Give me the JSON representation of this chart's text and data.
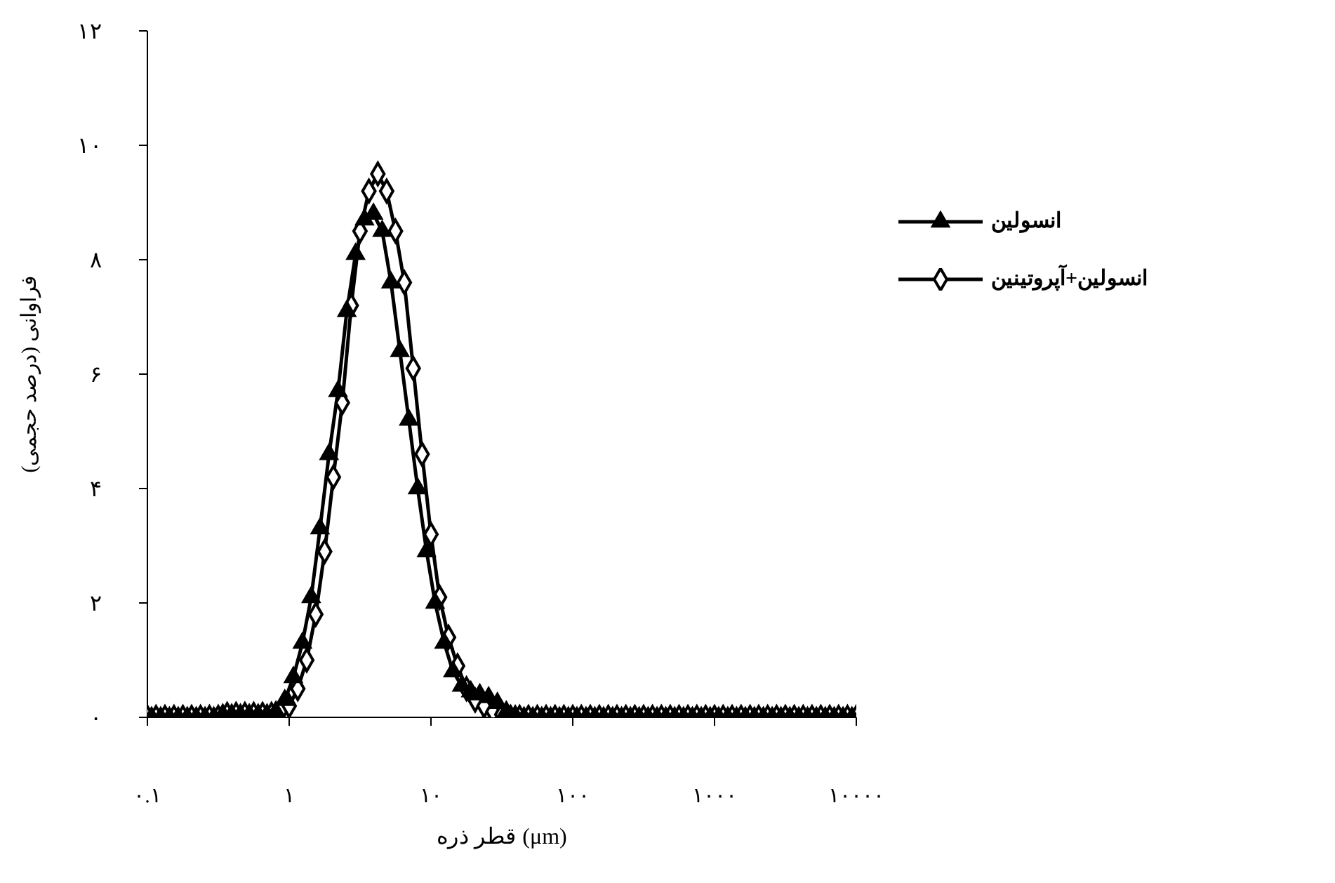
{
  "chart_data": {
    "type": "line",
    "xlabel": "قطر ذره (μm)",
    "ylabel": "فراوانی (درصد حجمی)",
    "log": "x",
    "grid": false,
    "legend": "top right",
    "x": [
      0.1,
      0.115,
      0.133,
      0.154,
      0.178,
      0.205,
      0.237,
      0.274,
      0.316,
      0.365,
      0.422,
      0.487,
      0.562,
      0.649,
      0.75,
      0.866,
      1,
      1.15,
      1.33,
      1.54,
      1.78,
      2.05,
      2.37,
      2.74,
      3.16,
      3.65,
      4.22,
      4.87,
      5.62,
      6.49,
      7.5,
      8.66,
      10,
      11.5,
      13.3,
      15.4,
      17.8,
      20.5,
      23.7,
      27.4,
      31.6,
      36.5,
      42.2,
      48.7,
      56.2,
      64.9,
      75,
      86.6,
      100,
      115,
      133,
      154,
      178,
      205,
      237,
      274,
      316,
      365,
      422,
      487,
      562,
      649,
      750,
      866,
      1000,
      1150,
      1330,
      1540,
      1780,
      2050,
      2370,
      2740,
      3160,
      3650,
      4220,
      4870,
      5620,
      6490,
      7500,
      8660,
      10000
    ],
    "xlim": [
      0.1,
      10000
    ],
    "xticks": [
      {
        "value": 0.1,
        "label": "۰.۱"
      },
      {
        "value": 1,
        "label": "۱"
      },
      {
        "value": 10,
        "label": "۱۰"
      },
      {
        "value": 100,
        "label": "۱۰۰"
      },
      {
        "value": 1000,
        "label": "۱۰۰۰"
      },
      {
        "value": 10000,
        "label": "۱۰۰۰۰"
      }
    ],
    "ylim": [
      0,
      12
    ],
    "yticks": [
      {
        "value": 0,
        "label": "۰"
      },
      {
        "value": 2,
        "label": "۲"
      },
      {
        "value": 4,
        "label": "۴"
      },
      {
        "value": 6,
        "label": "۶"
      },
      {
        "value": 8,
        "label": "۸"
      },
      {
        "value": 10,
        "label": "۱۰"
      },
      {
        "value": 12,
        "label": "۱۲"
      }
    ],
    "series": [
      {
        "name": "انسولین",
        "color": "#000000",
        "marker": "triangle",
        "x": [
          0.107,
          0.124,
          0.143,
          0.165,
          0.191,
          0.221,
          0.255,
          0.294,
          0.34,
          0.393,
          0.453,
          0.523,
          0.604,
          0.698,
          0.806,
          0.931,
          1.07,
          1.24,
          1.43,
          1.65,
          1.91,
          2.21,
          2.55,
          2.94,
          3.4,
          3.93,
          4.53,
          5.23,
          6.04,
          6.98,
          8.06,
          9.31,
          10.7,
          12.4,
          14.3,
          16.5,
          19.1,
          22.1,
          25.5,
          29.4,
          34,
          39.3,
          45.3,
          52.3,
          60.4,
          69.8,
          80.6,
          93.1,
          107,
          124,
          143,
          165,
          191,
          221,
          255,
          294,
          340,
          393,
          453,
          523,
          604,
          698,
          806,
          931,
          1070,
          1240,
          1430,
          1650,
          1910,
          2210,
          2550,
          2940,
          3400,
          3930,
          4530,
          5230,
          6040,
          6980,
          8060,
          9310
        ],
        "values": [
          0,
          0,
          0,
          0,
          0,
          0,
          0,
          0,
          0.05,
          0.05,
          0.05,
          0.05,
          0.05,
          0.05,
          0.1,
          0.3,
          0.7,
          1.3,
          2.1,
          3.3,
          4.6,
          5.7,
          7.1,
          8.1,
          8.7,
          8.8,
          8.5,
          7.6,
          6.4,
          5.2,
          4.0,
          2.9,
          2.0,
          1.3,
          0.8,
          0.55,
          0.45,
          0.4,
          0.35,
          0.25,
          0.1,
          0.03,
          0,
          0,
          0,
          0,
          0,
          0,
          0,
          0,
          0,
          0,
          0,
          0,
          0,
          0,
          0,
          0,
          0,
          0,
          0,
          0,
          0,
          0,
          0,
          0,
          0,
          0,
          0,
          0,
          0,
          0,
          0,
          0,
          0,
          0,
          0,
          0,
          0,
          0
        ]
      },
      {
        "name": "انسولین+آپروتینین",
        "color": "#000000",
        "marker": "diamond",
        "values": [
          0,
          0,
          0,
          0,
          0,
          0,
          0,
          0,
          0,
          0.05,
          0.05,
          0.05,
          0.05,
          0.05,
          0.05,
          0.1,
          0.2,
          0.5,
          1.0,
          1.8,
          2.9,
          4.2,
          5.5,
          7.2,
          8.5,
          9.2,
          9.5,
          9.2,
          8.5,
          7.6,
          6.1,
          4.6,
          3.2,
          2.1,
          1.4,
          0.9,
          0.5,
          0.3,
          0.2,
          0.1,
          0.05,
          0,
          0,
          0,
          0,
          0,
          0,
          0,
          0,
          0,
          0,
          0,
          0,
          0,
          0,
          0,
          0,
          0,
          0,
          0,
          0,
          0,
          0,
          0,
          0,
          0,
          0,
          0,
          0,
          0,
          0,
          0,
          0,
          0,
          0,
          0,
          0,
          0,
          0,
          0,
          0
        ]
      }
    ]
  }
}
